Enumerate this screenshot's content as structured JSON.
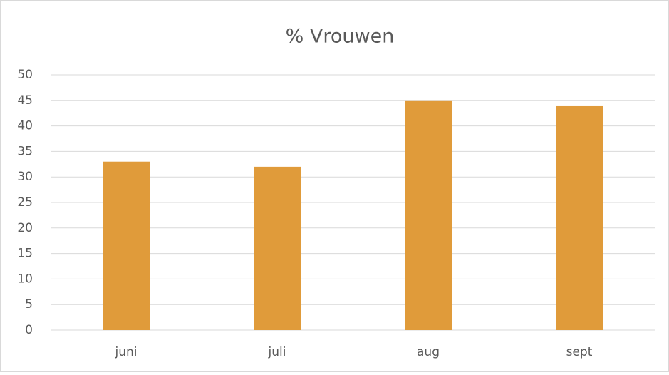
{
  "chart_data": {
    "type": "bar",
    "title": "% Vrouwen",
    "categories": [
      "juni",
      "juli",
      "aug",
      "sept"
    ],
    "values": [
      33,
      32,
      45,
      44
    ],
    "color": "#e09b3a",
    "ylim": [
      0,
      50
    ],
    "yticks": [
      0,
      5,
      10,
      15,
      20,
      25,
      30,
      35,
      40,
      45,
      50
    ],
    "grid": true
  }
}
